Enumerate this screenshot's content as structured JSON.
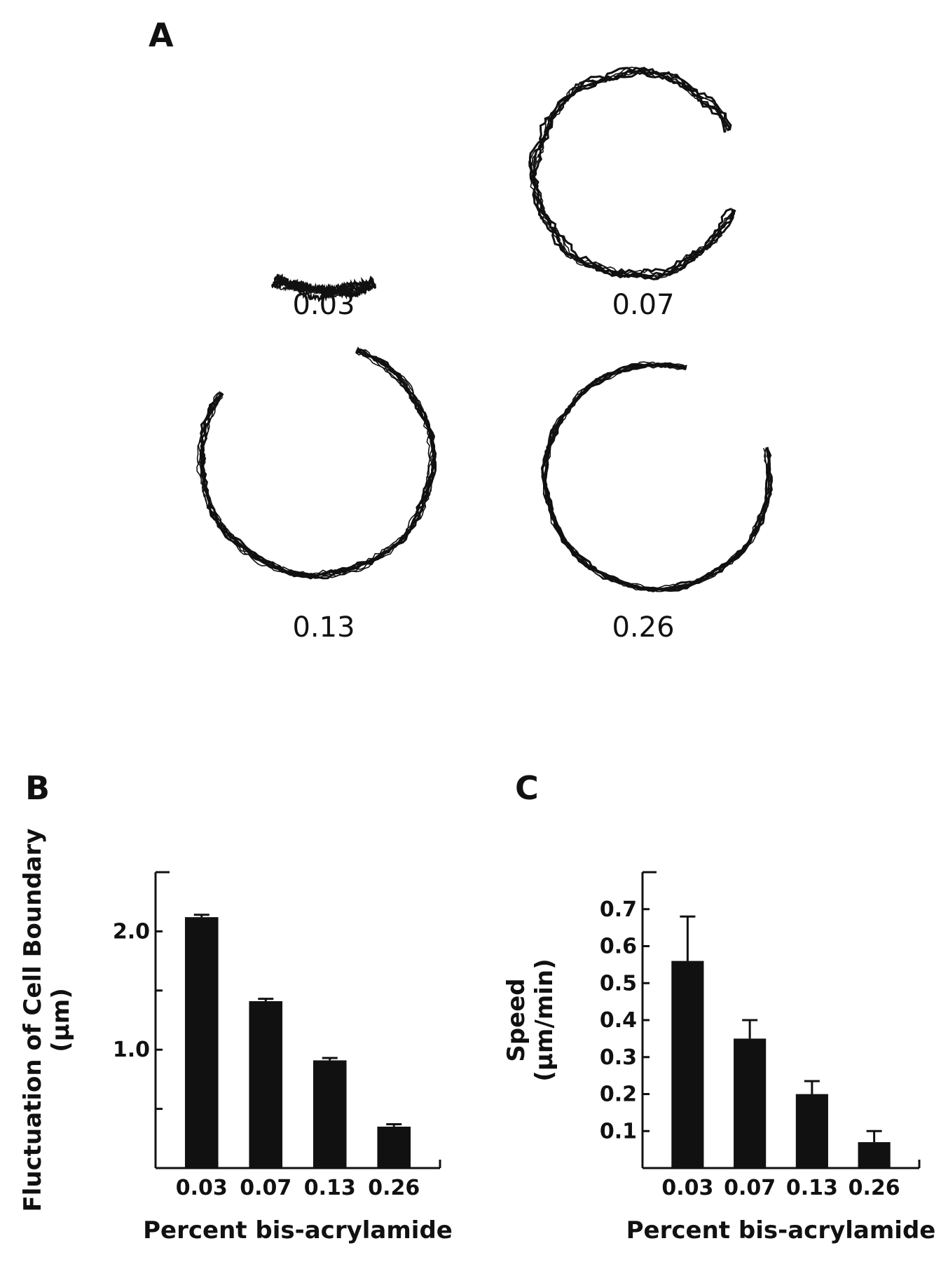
{
  "panels": {
    "A": {
      "letter": "A",
      "outlines": [
        {
          "label": "0.03"
        },
        {
          "label": "0.07"
        },
        {
          "label": "0.13"
        },
        {
          "label": "0.26"
        }
      ]
    },
    "B": {
      "letter": "B"
    },
    "C": {
      "letter": "C"
    }
  },
  "chart_data": [
    {
      "panel": "B",
      "type": "bar",
      "categories": [
        "0.03",
        "0.07",
        "0.13",
        "0.26"
      ],
      "values": [
        2.12,
        1.41,
        0.91,
        0.35
      ],
      "errors": [
        0.02,
        0.02,
        0.02,
        0.02
      ],
      "xlabel": "Percent bis-acrylamide",
      "ylabel": "Fluctuation of Cell Boundary",
      "ylabel_unit": "(µm)",
      "ylim": [
        0,
        2.5
      ],
      "yticks": [
        0.5,
        1.0,
        1.5,
        2.0,
        2.5
      ],
      "ytick_labels": [
        "",
        "1.0",
        "",
        "2.0",
        ""
      ],
      "grid": false
    },
    {
      "panel": "C",
      "type": "bar",
      "categories": [
        "0.03",
        "0.07",
        "0.13",
        "0.26"
      ],
      "values": [
        0.56,
        0.35,
        0.2,
        0.07
      ],
      "errors": [
        0.12,
        0.05,
        0.035,
        0.03
      ],
      "xlabel": "Percent bis-acrylamide",
      "ylabel": "Speed",
      "ylabel_unit": "(µm/min)",
      "ylim": [
        0,
        0.8
      ],
      "yticks": [
        0.1,
        0.2,
        0.3,
        0.4,
        0.5,
        0.6,
        0.7,
        0.8
      ],
      "ytick_labels": [
        "0.1",
        "0.2",
        "0.3",
        "0.4",
        "0.5",
        "0.6",
        "0.7",
        ""
      ],
      "grid": false
    }
  ]
}
